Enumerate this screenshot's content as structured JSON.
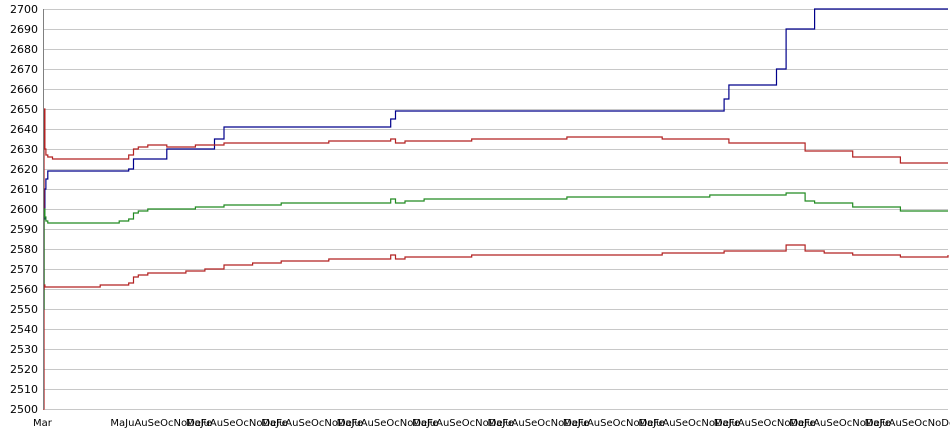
{
  "chart_data": {
    "type": "line",
    "title": "",
    "xlabel": "",
    "ylabel": "",
    "ylim": [
      2500,
      2700
    ],
    "y_ticks": [
      2500,
      2510,
      2520,
      2530,
      2540,
      2550,
      2560,
      2570,
      2580,
      2590,
      2600,
      2610,
      2620,
      2630,
      2640,
      2650,
      2660,
      2670,
      2680,
      2690,
      2700
    ],
    "grid": "horizontal",
    "legend": "none",
    "x": [
      0,
      1,
      2,
      3,
      5,
      10,
      20,
      30,
      40,
      50,
      60,
      70,
      80,
      90,
      95,
      100,
      110,
      120,
      130,
      140,
      150,
      160,
      170,
      180,
      190,
      200,
      220,
      250,
      300,
      350,
      365,
      370,
      380,
      400,
      450,
      500,
      550,
      600,
      650,
      700,
      710,
      715,
      720,
      740,
      760,
      770,
      780,
      800,
      810,
      820,
      850,
      900,
      950
    ],
    "x_tick_labels": [
      "Mar",
      "MaJuAuSeOcNoDeFe",
      "MaJuAuSeOcNoDeFe",
      "MaJuAuSeOcNoDeFe",
      "MaJuAuSeOcNoDeFe",
      "MaJuAuSeOcNoDeFe",
      "MaJuAuSeOcNoDeFe",
      "MaJuAuSeOcNoDeFe",
      "MaJuAuSeOcNoDeFe",
      "MaJuAuSeOcNoDeFe",
      "MaJuAuSeOcNoDeFe",
      "MaJuAuSeOcNoDeFe"
    ],
    "series": [
      {
        "color": "#00008b",
        "values": [
          2550,
          2595,
          2610,
          2615,
          2619,
          2619,
          2619,
          2619,
          2619,
          2619,
          2619,
          2619,
          2619,
          2620,
          2625,
          2625,
          2625,
          2625,
          2630,
          2630,
          2630,
          2630,
          2630,
          2635,
          2641,
          2641,
          2641,
          2641,
          2641,
          2641,
          2645,
          2649,
          2649,
          2649,
          2649,
          2649,
          2649,
          2649,
          2649,
          2649,
          2649,
          2655,
          2662,
          2662,
          2662,
          2670,
          2690,
          2690,
          2700,
          2700,
          2700,
          2700,
          2700
        ]
      },
      {
        "color": "#b22222",
        "values": [
          2500,
          2650,
          2630,
          2627,
          2626,
          2625,
          2625,
          2625,
          2625,
          2625,
          2625,
          2625,
          2625,
          2627,
          2630,
          2631,
          2632,
          2632,
          2631,
          2631,
          2631,
          2632,
          2632,
          2632,
          2633,
          2633,
          2633,
          2633,
          2634,
          2634,
          2635,
          2633,
          2634,
          2634,
          2635,
          2635,
          2636,
          2636,
          2635,
          2635,
          2635,
          2635,
          2633,
          2633,
          2633,
          2633,
          2633,
          2629,
          2629,
          2629,
          2626,
          2623,
          2623
        ]
      },
      {
        "color": "#228b22",
        "values": [
          2550,
          2600,
          2596,
          2594,
          2593,
          2593,
          2593,
          2593,
          2593,
          2593,
          2593,
          2593,
          2594,
          2595,
          2598,
          2599,
          2600,
          2600,
          2600,
          2600,
          2600,
          2601,
          2601,
          2601,
          2602,
          2602,
          2602,
          2603,
          2603,
          2603,
          2605,
          2603,
          2604,
          2605,
          2605,
          2605,
          2606,
          2606,
          2606,
          2607,
          2607,
          2607,
          2607,
          2607,
          2607,
          2607,
          2608,
          2604,
          2603,
          2603,
          2601,
          2599,
          2599
        ]
      },
      {
        "color": "#b22222",
        "values": [
          2560,
          2562,
          2561,
          2561,
          2561,
          2561,
          2561,
          2561,
          2561,
          2561,
          2562,
          2562,
          2562,
          2563,
          2566,
          2567,
          2568,
          2568,
          2568,
          2568,
          2569,
          2569,
          2570,
          2570,
          2572,
          2572,
          2573,
          2574,
          2575,
          2575,
          2577,
          2575,
          2576,
          2576,
          2577,
          2577,
          2577,
          2577,
          2578,
          2578,
          2578,
          2579,
          2579,
          2579,
          2579,
          2579,
          2582,
          2579,
          2579,
          2578,
          2577,
          2576,
          2577
        ]
      }
    ]
  }
}
